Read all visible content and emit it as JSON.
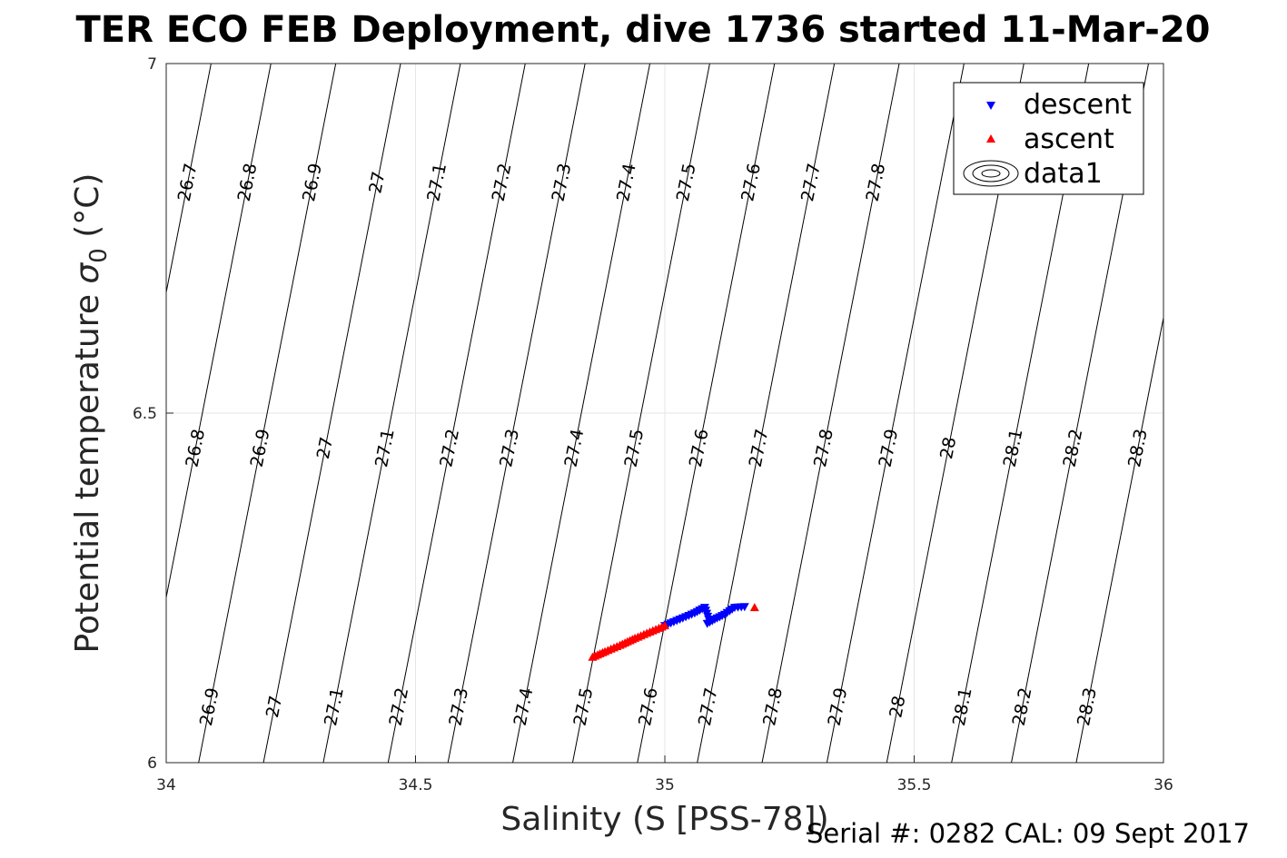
{
  "chart_data": {
    "type": "scatter",
    "title": "TER ECO FEB Deployment, dive 1736 started 11-Mar-20",
    "xlabel": "Salinity (S [PSS-78])",
    "ylabel_main": "Potential temperature ",
    "ylabel_sigma": "σ",
    "ylabel_sub": "0",
    "ylabel_unit": " (°C)",
    "xlim": [
      34,
      36
    ],
    "ylim": [
      6,
      7
    ],
    "xticks": [
      "34",
      "34.5",
      "35",
      "35.5",
      "36"
    ],
    "yticks": [
      "6",
      "6.5",
      "7"
    ],
    "grid": true,
    "legend_position": "top-right",
    "series": [
      {
        "name": "descent",
        "marker": "triangle-down",
        "color": "#0000ff",
        "points": [
          [
            35.0,
            6.196
          ],
          [
            35.03,
            6.205
          ],
          [
            35.06,
            6.214
          ],
          [
            35.08,
            6.222
          ],
          [
            35.088,
            6.205
          ],
          [
            35.085,
            6.199
          ],
          [
            35.1,
            6.205
          ],
          [
            35.12,
            6.212
          ],
          [
            35.14,
            6.222
          ],
          [
            35.16,
            6.223
          ]
        ]
      },
      {
        "name": "ascent",
        "marker": "triangle-up",
        "color": "#ff0000",
        "points": [
          [
            34.855,
            6.151
          ],
          [
            34.88,
            6.159
          ],
          [
            34.91,
            6.168
          ],
          [
            34.94,
            6.178
          ],
          [
            34.97,
            6.187
          ],
          [
            35.0,
            6.196
          ],
          [
            35.18,
            6.222
          ]
        ]
      }
    ],
    "contour_series_name": "data1",
    "contours": [
      {
        "label": "26.7",
        "x_at_7": 34.09
      },
      {
        "label": "26.8",
        "x_at_7": 34.21
      },
      {
        "label": "26.9",
        "x_at_7": 34.34
      },
      {
        "label": "27",
        "x_at_7": 34.47
      },
      {
        "label": "27.1",
        "x_at_7": 34.59
      },
      {
        "label": "27.2",
        "x_at_7": 34.72
      },
      {
        "label": "27.3",
        "x_at_7": 34.84
      },
      {
        "label": "27.4",
        "x_at_7": 34.97
      },
      {
        "label": "27.5",
        "x_at_7": 35.09
      },
      {
        "label": "27.6",
        "x_at_7": 35.22
      },
      {
        "label": "27.7",
        "x_at_7": 35.34
      },
      {
        "label": "27.8",
        "x_at_7": 35.47
      },
      {
        "label": "27.9",
        "x_at_7": 35.6
      },
      {
        "label": "28",
        "x_at_7": 35.72
      },
      {
        "label": "28.1",
        "x_at_7": 35.85
      },
      {
        "label": "28.2",
        "x_at_7": 35.97
      },
      {
        "label": "28.3",
        "x_at_7": 36.1
      }
    ],
    "contour_slope_x_per_degC": 0.275
  },
  "footer": "Serial #: 0282  CAL: 09 Sept 2017"
}
